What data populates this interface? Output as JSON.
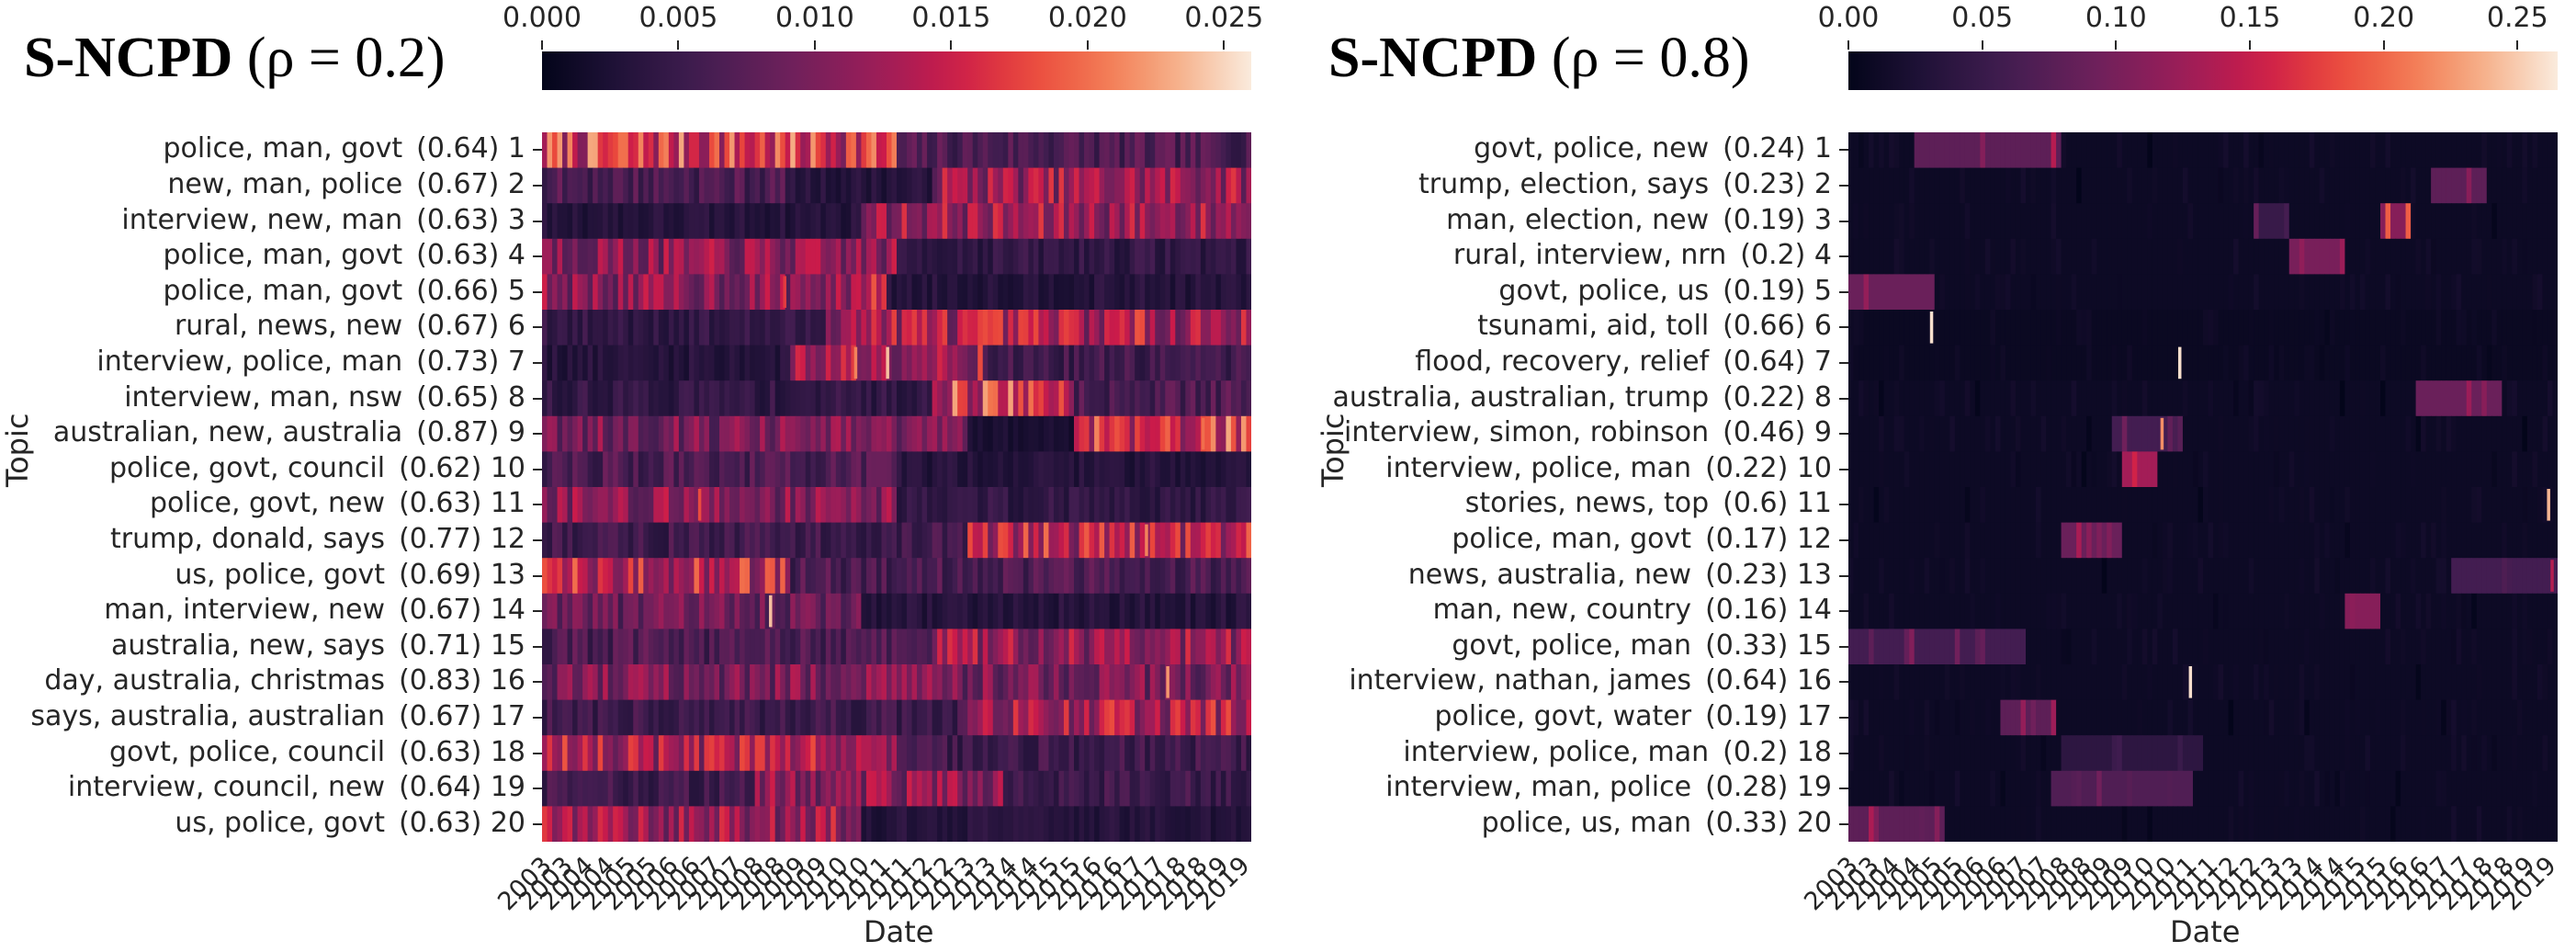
{
  "chart_data": [
    {
      "type": "heatmap",
      "title_bold": "S-NCPD",
      "title_param": "(ρ = 0.2)",
      "colormap": "rocket",
      "colorbar": {
        "min": 0.0,
        "max": 0.026,
        "ticks": [
          "0.000",
          "0.005",
          "0.010",
          "0.015",
          "0.020",
          "0.025"
        ],
        "tick_values": [
          0.0,
          0.005,
          0.01,
          0.015,
          0.02,
          0.025
        ]
      },
      "ylabel": "Topic",
      "xlabel": "Date",
      "x_ticks": [
        "2003",
        "2003",
        "2004",
        "2004",
        "2005",
        "2005",
        "2006",
        "2006",
        "2007",
        "2007",
        "2008",
        "2008",
        "2009",
        "2009",
        "2010",
        "2010",
        "2011",
        "2011",
        "2012",
        "2012",
        "2013",
        "2013",
        "2014",
        "2014",
        "2015",
        "2015",
        "2016",
        "2016",
        "2017",
        "2017",
        "2018",
        "2018",
        "2019",
        "2019"
      ],
      "topics": [
        {
          "label": "police, man, govt",
          "score": "(0.64)",
          "id": "1"
        },
        {
          "label": "new, man, police",
          "score": "(0.67)",
          "id": "2"
        },
        {
          "label": "interview, new, man",
          "score": "(0.63)",
          "id": "3"
        },
        {
          "label": "police, man, govt",
          "score": "(0.63)",
          "id": "4"
        },
        {
          "label": "police, man, govt",
          "score": "(0.66)",
          "id": "5"
        },
        {
          "label": "rural, news, new",
          "score": "(0.67)",
          "id": "6"
        },
        {
          "label": "interview, police, man",
          "score": "(0.73)",
          "id": "7"
        },
        {
          "label": "interview, man, nsw",
          "score": "(0.65)",
          "id": "8"
        },
        {
          "label": "australian, new, australia",
          "score": "(0.87)",
          "id": "9"
        },
        {
          "label": "police, govt, council",
          "score": "(0.62)",
          "id": "10"
        },
        {
          "label": "police, govt, new",
          "score": "(0.63)",
          "id": "11"
        },
        {
          "label": "trump, donald, says",
          "score": "(0.77)",
          "id": "12"
        },
        {
          "label": "us, police, govt",
          "score": "(0.69)",
          "id": "13"
        },
        {
          "label": "man, interview, new",
          "score": "(0.67)",
          "id": "14"
        },
        {
          "label": "australia, new, says",
          "score": "(0.71)",
          "id": "15"
        },
        {
          "label": "day, australia, christmas",
          "score": "(0.83)",
          "id": "16"
        },
        {
          "label": "says, australia, australian",
          "score": "(0.67)",
          "id": "17"
        },
        {
          "label": "govt, police, council",
          "score": "(0.63)",
          "id": "18"
        },
        {
          "label": "interview, council, new",
          "score": "(0.64)",
          "id": "19"
        },
        {
          "label": "us, police, govt",
          "score": "(0.63)",
          "id": "20"
        }
      ],
      "profiles": [
        {
          "base": 0.01,
          "segs": [
            [
              0.0,
              0.5,
              0.015
            ],
            [
              0.5,
              1.0,
              0.006
            ]
          ]
        },
        {
          "base": 0.005,
          "segs": [
            [
              0.0,
              0.35,
              0.006
            ],
            [
              0.35,
              0.55,
              0.003
            ],
            [
              0.55,
              1.0,
              0.011
            ]
          ]
        },
        {
          "base": 0.004,
          "segs": [
            [
              0.0,
              0.45,
              0.003
            ],
            [
              0.45,
              1.0,
              0.011
            ]
          ]
        },
        {
          "base": 0.009,
          "segs": [
            [
              0.0,
              0.5,
              0.01
            ],
            [
              0.5,
              1.0,
              0.004
            ]
          ]
        },
        {
          "base": 0.008,
          "segs": [
            [
              0.0,
              0.45,
              0.01
            ],
            [
              0.45,
              0.48,
              0.016
            ],
            [
              0.48,
              1.0,
              0.003
            ]
          ]
        },
        {
          "base": 0.004,
          "segs": [
            [
              0.0,
              0.4,
              0.004
            ],
            [
              0.4,
              1.0,
              0.012
            ]
          ]
        },
        {
          "base": 0.005,
          "segs": [
            [
              0.0,
              0.35,
              0.003
            ],
            [
              0.35,
              0.62,
              0.012
            ],
            [
              0.62,
              1.0,
              0.005
            ]
          ]
        },
        {
          "base": 0.004,
          "segs": [
            [
              0.0,
              0.55,
              0.004
            ],
            [
              0.55,
              0.75,
              0.015
            ],
            [
              0.75,
              1.0,
              0.006
            ]
          ]
        },
        {
          "base": 0.007,
          "segs": [
            [
              0.0,
              0.6,
              0.009
            ],
            [
              0.6,
              0.75,
              0.002
            ],
            [
              0.75,
              1.0,
              0.015
            ]
          ]
        },
        {
          "base": 0.004,
          "segs": [
            [
              0.0,
              0.5,
              0.006
            ],
            [
              0.5,
              1.0,
              0.003
            ]
          ]
        },
        {
          "base": 0.006,
          "segs": [
            [
              0.0,
              0.5,
              0.01
            ],
            [
              0.5,
              1.0,
              0.004
            ]
          ]
        },
        {
          "base": 0.004,
          "segs": [
            [
              0.0,
              0.6,
              0.005
            ],
            [
              0.6,
              1.0,
              0.013
            ]
          ]
        },
        {
          "base": 0.008,
          "segs": [
            [
              0.0,
              0.35,
              0.013
            ],
            [
              0.35,
              1.0,
              0.006
            ]
          ]
        },
        {
          "base": 0.005,
          "segs": [
            [
              0.0,
              0.45,
              0.008
            ],
            [
              0.45,
              1.0,
              0.003
            ]
          ]
        },
        {
          "base": 0.006,
          "segs": [
            [
              0.0,
              0.55,
              0.006
            ],
            [
              0.55,
              1.0,
              0.011
            ]
          ]
        },
        {
          "base": 0.007,
          "segs": [
            [
              0.0,
              1.0,
              0.009
            ]
          ]
        },
        {
          "base": 0.005,
          "segs": [
            [
              0.0,
              0.6,
              0.005
            ],
            [
              0.6,
              1.0,
              0.012
            ]
          ]
        },
        {
          "base": 0.009,
          "segs": [
            [
              0.0,
              0.5,
              0.012
            ],
            [
              0.5,
              1.0,
              0.005
            ]
          ]
        },
        {
          "base": 0.006,
          "segs": [
            [
              0.0,
              0.3,
              0.005
            ],
            [
              0.3,
              0.65,
              0.01
            ],
            [
              0.65,
              1.0,
              0.005
            ]
          ]
        },
        {
          "base": 0.008,
          "segs": [
            [
              0.0,
              0.45,
              0.011
            ],
            [
              0.45,
              1.0,
              0.003
            ]
          ]
        }
      ],
      "spikes": [
        {
          "row": 6,
          "pos": 0.485,
          "value": 0.024
        },
        {
          "row": 6,
          "pos": 0.44,
          "value": 0.021
        },
        {
          "row": 13,
          "pos": 0.32,
          "value": 0.024
        },
        {
          "row": 11,
          "pos": 0.85,
          "value": 0.021
        },
        {
          "row": 15,
          "pos": 0.88,
          "value": 0.022
        },
        {
          "row": 10,
          "pos": 0.22,
          "value": 0.018
        },
        {
          "row": 4,
          "pos": 0.34,
          "value": 0.017
        },
        {
          "row": 8,
          "pos": 0.93,
          "value": 0.02
        }
      ]
    },
    {
      "type": "heatmap",
      "title_bold": "S-NCPD",
      "title_param": "(ρ = 0.8)",
      "colormap": "rocket",
      "colorbar": {
        "min": 0.0,
        "max": 0.265,
        "ticks": [
          "0.00",
          "0.05",
          "0.10",
          "0.15",
          "0.20",
          "0.25"
        ],
        "tick_values": [
          0.0,
          0.05,
          0.1,
          0.15,
          0.2,
          0.25
        ]
      },
      "ylabel": "Topic",
      "xlabel": "Date",
      "x_ticks": [
        "2003",
        "2003",
        "2004",
        "2004",
        "2005",
        "2005",
        "2006",
        "2006",
        "2007",
        "2007",
        "2008",
        "2008",
        "2009",
        "2009",
        "2010",
        "2010",
        "2011",
        "2011",
        "2012",
        "2012",
        "2013",
        "2013",
        "2014",
        "2014",
        "2015",
        "2015",
        "2016",
        "2016",
        "2017",
        "2017",
        "2018",
        "2018",
        "2019",
        "2019"
      ],
      "topics": [
        {
          "label": "govt, police, new",
          "score": "(0.24)",
          "id": "1"
        },
        {
          "label": "trump, election, says",
          "score": "(0.23)",
          "id": "2"
        },
        {
          "label": "man, election, new",
          "score": "(0.19)",
          "id": "3"
        },
        {
          "label": "rural, interview, nrn",
          "score": "(0.2)",
          "id": "4"
        },
        {
          "label": "govt, police, us",
          "score": "(0.19)",
          "id": "5"
        },
        {
          "label": "tsunami, aid, toll",
          "score": "(0.66)",
          "id": "6"
        },
        {
          "label": "flood, recovery, relief",
          "score": "(0.64)",
          "id": "7"
        },
        {
          "label": "australia, australian, trump",
          "score": "(0.22)",
          "id": "8"
        },
        {
          "label": "interview, simon, robinson",
          "score": "(0.46)",
          "id": "9"
        },
        {
          "label": "interview, police, man",
          "score": "(0.22)",
          "id": "10"
        },
        {
          "label": "stories, news, top",
          "score": "(0.6)",
          "id": "11"
        },
        {
          "label": "police, man, govt",
          "score": "(0.17)",
          "id": "12"
        },
        {
          "label": "news, australia, new",
          "score": "(0.23)",
          "id": "13"
        },
        {
          "label": "man, new, country",
          "score": "(0.16)",
          "id": "14"
        },
        {
          "label": "govt, police, man",
          "score": "(0.33)",
          "id": "15"
        },
        {
          "label": "interview, nathan, james",
          "score": "(0.64)",
          "id": "16"
        },
        {
          "label": "police, govt, water",
          "score": "(0.19)",
          "id": "17"
        },
        {
          "label": "interview, police, man",
          "score": "(0.2)",
          "id": "18"
        },
        {
          "label": "interview, man, police",
          "score": "(0.28)",
          "id": "19"
        },
        {
          "label": "police, us, man",
          "score": "(0.33)",
          "id": "20"
        }
      ],
      "profiles": [
        {
          "base": 0.01,
          "segs": [
            [
              0.09,
              0.3,
              0.08
            ]
          ]
        },
        {
          "base": 0.01,
          "segs": [
            [
              0.82,
              0.9,
              0.08
            ]
          ]
        },
        {
          "base": 0.01,
          "segs": [
            [
              0.57,
              0.62,
              0.05
            ],
            [
              0.75,
              0.79,
              0.11
            ]
          ]
        },
        {
          "base": 0.01,
          "segs": [
            [
              0.62,
              0.7,
              0.1
            ]
          ]
        },
        {
          "base": 0.01,
          "segs": [
            [
              0.0,
              0.12,
              0.09
            ]
          ]
        },
        {
          "base": 0.008,
          "segs": []
        },
        {
          "base": 0.008,
          "segs": []
        },
        {
          "base": 0.01,
          "segs": [
            [
              0.8,
              0.92,
              0.09
            ]
          ]
        },
        {
          "base": 0.01,
          "segs": [
            [
              0.37,
              0.47,
              0.06
            ]
          ]
        },
        {
          "base": 0.01,
          "segs": [
            [
              0.38,
              0.43,
              0.13
            ]
          ]
        },
        {
          "base": 0.01,
          "segs": []
        },
        {
          "base": 0.01,
          "segs": [
            [
              0.3,
              0.38,
              0.09
            ]
          ]
        },
        {
          "base": 0.01,
          "segs": [
            [
              0.85,
              1.0,
              0.06
            ]
          ]
        },
        {
          "base": 0.01,
          "segs": [
            [
              0.7,
              0.75,
              0.11
            ]
          ]
        },
        {
          "base": 0.01,
          "segs": [
            [
              0.0,
              0.25,
              0.06
            ]
          ]
        },
        {
          "base": 0.01,
          "segs": []
        },
        {
          "base": 0.01,
          "segs": [
            [
              0.21,
              0.29,
              0.08
            ]
          ]
        },
        {
          "base": 0.01,
          "segs": [
            [
              0.3,
              0.5,
              0.04
            ]
          ]
        },
        {
          "base": 0.01,
          "segs": [
            [
              0.28,
              0.48,
              0.07
            ]
          ]
        },
        {
          "base": 0.01,
          "segs": [
            [
              0.0,
              0.13,
              0.08
            ]
          ]
        }
      ],
      "spikes": [
        {
          "row": 5,
          "pos": 0.115,
          "value": 0.26
        },
        {
          "row": 6,
          "pos": 0.465,
          "value": 0.26
        },
        {
          "row": 8,
          "pos": 0.44,
          "value": 0.22
        },
        {
          "row": 10,
          "pos": 0.985,
          "value": 0.24
        },
        {
          "row": 15,
          "pos": 0.48,
          "value": 0.26
        },
        {
          "row": 12,
          "pos": 0.99,
          "value": 0.14
        }
      ]
    }
  ]
}
